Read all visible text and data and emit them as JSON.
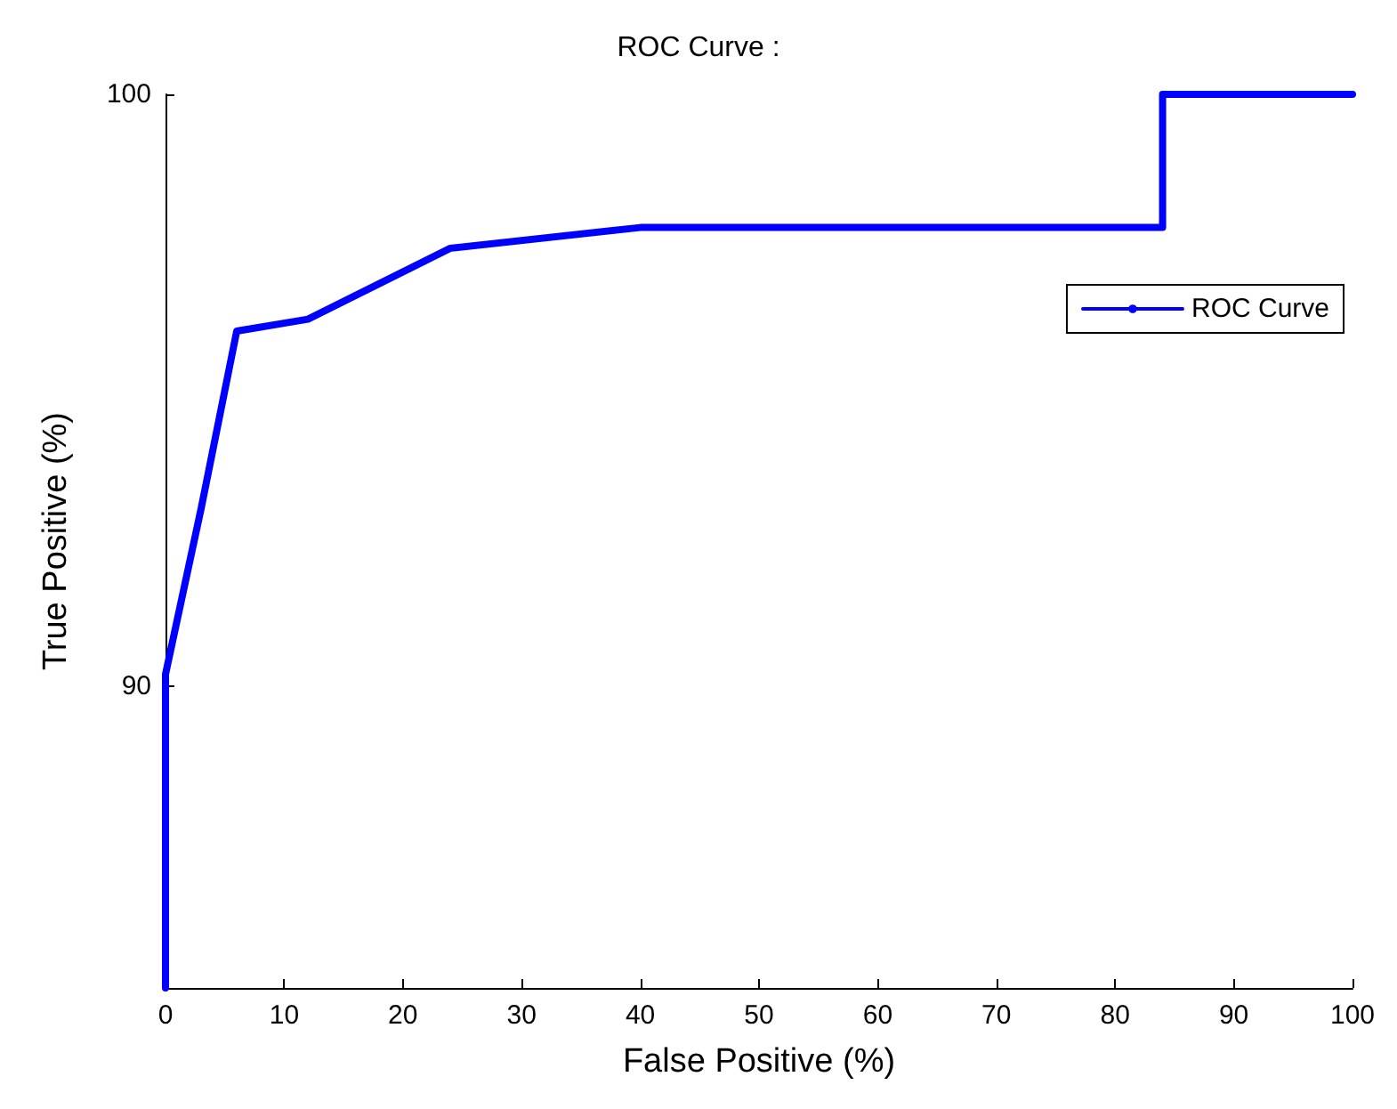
{
  "chart_data": {
    "type": "line",
    "title": "ROC Curve :",
    "xlabel": "False Positive (%)",
    "ylabel": "True Positive (%)",
    "series": [
      {
        "name": "ROC Curve",
        "color": "#0000ff",
        "x": [
          0,
          0,
          3,
          6,
          12,
          24,
          40,
          84,
          84,
          100
        ],
        "values": [
          84.9,
          90.2,
          93.0,
          96.0,
          96.2,
          97.4,
          97.75,
          97.75,
          100,
          100
        ]
      }
    ],
    "xlim": [
      0,
      100
    ],
    "xticks": [
      0,
      10,
      20,
      30,
      40,
      50,
      60,
      70,
      80,
      90,
      100
    ],
    "ylim": [
      84.9,
      100
    ],
    "yticks": [
      90,
      100
    ],
    "grid": false,
    "legend": "top right",
    "marker": "none",
    "line_style": "solid"
  }
}
